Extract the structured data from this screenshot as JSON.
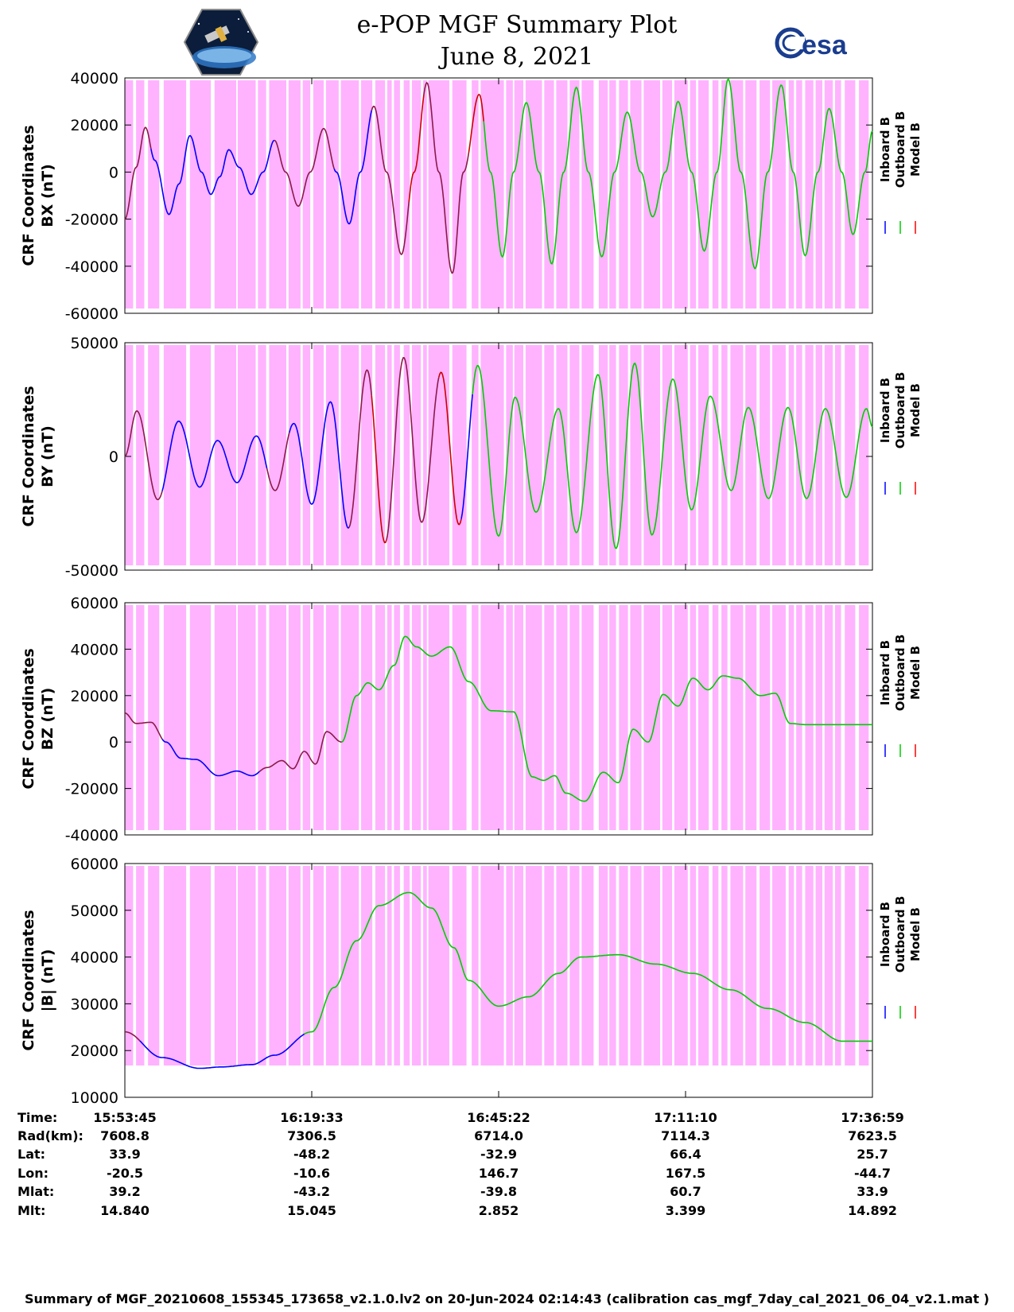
{
  "header": {
    "title": "e-POP MGF Summary Plot",
    "date": "June 8, 2021",
    "logo_left": "CASSIOPE",
    "logo_right": "esa"
  },
  "legend": [
    {
      "label": "Inboard B",
      "color": "#0000ff"
    },
    {
      "label": "Outboard B",
      "color": "#00cc00"
    },
    {
      "label": "Model B",
      "color": "#ff0000"
    }
  ],
  "colors": {
    "shade": "#ffb3ff",
    "inboard": "#0000ff",
    "outboard": "#00cc00",
    "model": "#cc0000",
    "model_blend": "#8b1a4a"
  },
  "chart_data": [
    {
      "type": "line",
      "id": "bx",
      "ylabel": [
        "CRF Coordinates",
        "BX (nT)"
      ],
      "ylim": [
        -60000,
        40000
      ],
      "yticks": [
        40000,
        20000,
        0,
        -20000,
        -40000,
        -60000
      ],
      "ytick_labels": [
        "40000",
        "20000",
        "0",
        "-20000",
        "-40000",
        "-60000"
      ],
      "curve": {
        "x": [
          0,
          1.5,
          2.75,
          4,
          5.9,
          7.25,
          8.7,
          10.25,
          11.5,
          12.7,
          13.9,
          15.3,
          16.9,
          18.5,
          20,
          21.5,
          23.2,
          24.8,
          26.6,
          28.3,
          30,
          31.5,
          33.3,
          35,
          37,
          38.7,
          40.4,
          42,
          43.8,
          45.3,
          47.4,
          48.9,
          50.5,
          52,
          53.7,
          55.4,
          57.1,
          58.7,
          60.4,
          62,
          63.8,
          65.5,
          67.2,
          69,
          70.6,
          72.3,
          74,
          75.8,
          77.5,
          79.2,
          80.7,
          82.4,
          84.3,
          86,
          87.8,
          89.4,
          91,
          92.7,
          94.2,
          95.9,
          97.4,
          99,
          100
        ],
        "y": [
          -20000,
          2000,
          19000,
          5000,
          -18000,
          -5000,
          15500,
          0,
          -9500,
          -2000,
          9500,
          2000,
          -9500,
          0,
          13500,
          0,
          -14500,
          0,
          18500,
          0,
          -22000,
          0,
          28000,
          0,
          -35000,
          0,
          38000,
          0,
          -43000,
          0,
          33000,
          0,
          -36000,
          0,
          29500,
          0,
          -39000,
          0,
          36000,
          0,
          -36000,
          0,
          25500,
          0,
          -19000,
          0,
          30000,
          0,
          -33500,
          0,
          39500,
          0,
          -41000,
          0,
          37000,
          0,
          -35500,
          0,
          27000,
          0,
          -26500,
          0,
          17500
        ]
      },
      "segments": [
        [
          0,
          3.5,
          "model_blend"
        ],
        [
          3.5,
          20,
          "inboard"
        ],
        [
          20,
          28,
          "model_blend"
        ],
        [
          28,
          33,
          "inboard"
        ],
        [
          33,
          38,
          "model_blend"
        ],
        [
          38,
          40,
          "model"
        ],
        [
          40,
          46,
          "model_blend"
        ],
        [
          46,
          48,
          "model"
        ],
        [
          48,
          100,
          "outboard"
        ]
      ]
    },
    {
      "type": "line",
      "id": "by",
      "ylabel": [
        "CRF Coordinates",
        "BY (nT)"
      ],
      "ylim": [
        -50000,
        50000
      ],
      "yticks": [
        50000,
        0,
        -50000
      ],
      "ytick_labels": [
        "50000",
        "0",
        "-50000"
      ],
      "curve": {
        "x": [
          0,
          1.6,
          4.4,
          7.2,
          10,
          12.4,
          15,
          17.6,
          20.1,
          22.6,
          25,
          27.5,
          29.9,
          32.4,
          34.8,
          37.3,
          39.7,
          42.3,
          44.7,
          47.2,
          50,
          52.2,
          55,
          58,
          60.4,
          63.3,
          65.7,
          68.2,
          70.5,
          73.3,
          75.8,
          78.3,
          81.1,
          83.4,
          86.1,
          88.7,
          91.2,
          93.7,
          96.5,
          99.2,
          100
        ],
        "y": [
          0,
          20000,
          -19000,
          15500,
          -13500,
          7000,
          -11500,
          9000,
          -15000,
          14500,
          -21000,
          24000,
          -31500,
          38000,
          -38000,
          43500,
          -29000,
          37000,
          -30000,
          40000,
          -35000,
          26000,
          -24500,
          21000,
          -33500,
          36000,
          -40500,
          41000,
          -34500,
          34000,
          -23500,
          26500,
          -15000,
          21500,
          -18500,
          21500,
          -18500,
          21000,
          -18000,
          21000,
          13000
        ]
      },
      "segments": [
        [
          0,
          5,
          "model_blend"
        ],
        [
          5,
          19,
          "inboard"
        ],
        [
          19,
          22,
          "model_blend"
        ],
        [
          22,
          30,
          "inboard"
        ],
        [
          30,
          33,
          "model_blend"
        ],
        [
          33,
          35,
          "model"
        ],
        [
          35,
          42,
          "model_blend"
        ],
        [
          42,
          45,
          "model"
        ],
        [
          45,
          46.5,
          "inboard"
        ],
        [
          46.5,
          100,
          "outboard"
        ]
      ]
    },
    {
      "type": "line",
      "id": "bz",
      "ylabel": [
        "CRF Coordinates",
        "BZ (nT)"
      ],
      "ylim": [
        -40000,
        60000
      ],
      "yticks": [
        60000,
        40000,
        20000,
        0,
        -20000,
        -40000
      ],
      "ytick_labels": [
        "60000",
        "40000",
        "20000",
        "0",
        "-20000",
        "-40000"
      ],
      "curve": {
        "x": [
          0,
          1.5,
          3.5,
          5.5,
          7.5,
          9.5,
          12.5,
          15,
          17,
          19,
          21,
          22.5,
          24,
          25.5,
          27,
          29,
          31,
          32.5,
          34,
          36,
          37.5,
          39,
          41,
          43.5,
          46,
          49,
          52,
          54.5,
          56,
          57.5,
          59,
          61.5,
          64,
          66,
          68,
          70,
          72,
          74,
          76,
          78,
          80,
          82,
          85,
          87,
          89,
          91,
          93,
          95,
          97,
          98.5,
          100
        ],
        "y": [
          12500,
          8000,
          8500,
          0,
          -7000,
          -7500,
          -14500,
          -12500,
          -14500,
          -11000,
          -8000,
          -11500,
          -4000,
          -9500,
          4500,
          0,
          20000,
          25500,
          22500,
          33000,
          45500,
          41000,
          37000,
          41000,
          26000,
          13500,
          13000,
          -15000,
          -16500,
          -14500,
          -22000,
          -25500,
          -13000,
          -17500,
          5500,
          0,
          20500,
          15500,
          27500,
          22500,
          28500,
          27500,
          20000,
          21000,
          8000,
          7500,
          7500,
          7500,
          7500,
          7500,
          7500
        ]
      },
      "segments": [
        [
          0,
          5,
          "model_blend"
        ],
        [
          5,
          18,
          "inboard"
        ],
        [
          18,
          29,
          "model_blend"
        ],
        [
          29,
          100,
          "outboard"
        ]
      ]
    },
    {
      "type": "line",
      "id": "bmag",
      "ylabel": [
        "CRF Coordinates",
        "|B| (nT)"
      ],
      "ylim": [
        10000,
        60000
      ],
      "yticks": [
        60000,
        50000,
        40000,
        30000,
        20000,
        10000
      ],
      "ytick_labels": [
        "60000",
        "50000",
        "40000",
        "30000",
        "20000",
        "10000"
      ],
      "curve": {
        "x": [
          0,
          5,
          10,
          13,
          17,
          20,
          25,
          28,
          31,
          34,
          38,
          41,
          44,
          46,
          50,
          54,
          58,
          61,
          66,
          71,
          76,
          81,
          86,
          91,
          96,
          100
        ],
        "y": [
          24000,
          18500,
          16200,
          16500,
          17000,
          19000,
          24000,
          33500,
          43500,
          51000,
          53800,
          50500,
          42000,
          35000,
          29500,
          31500,
          36500,
          40000,
          40500,
          38500,
          36500,
          33000,
          29000,
          26000,
          22000,
          22000
        ]
      },
      "segments": [
        [
          0,
          2,
          "model_blend"
        ],
        [
          2,
          24,
          "inboard"
        ],
        [
          24,
          100,
          "outboard"
        ]
      ]
    }
  ],
  "shade_bands": [
    [
      0,
      1.1
    ],
    [
      1.5,
      2.6
    ],
    [
      3.1,
      4.6
    ],
    [
      5.2,
      8.2
    ],
    [
      8.7,
      11.5
    ],
    [
      12,
      14.9
    ],
    [
      15.1,
      17.5
    ],
    [
      17.8,
      18.9
    ],
    [
      19.3,
      21.6
    ],
    [
      21.9,
      23.5
    ],
    [
      23.8,
      24.8
    ],
    [
      25.2,
      26.6
    ],
    [
      26.9,
      28.6
    ],
    [
      28.9,
      31.3
    ],
    [
      31.6,
      33.1
    ],
    [
      33.5,
      34.8
    ],
    [
      35.1,
      35.7
    ],
    [
      36,
      36.8
    ],
    [
      37.3,
      38.1
    ],
    [
      38.4,
      39.6
    ],
    [
      39.9,
      40.4
    ],
    [
      40.6,
      43.4
    ],
    [
      43.8,
      45.7
    ],
    [
      46.4,
      47.3
    ],
    [
      47.6,
      50.7
    ],
    [
      51,
      51.9
    ],
    [
      52.1,
      53.3
    ],
    [
      53.6,
      55.8
    ],
    [
      56.1,
      57.4
    ],
    [
      57.7,
      59.2
    ],
    [
      59.5,
      60.8
    ],
    [
      61.1,
      62.7
    ],
    [
      63.4,
      64.6
    ],
    [
      64.8,
      65.7
    ],
    [
      66.1,
      67.3
    ],
    [
      67.6,
      69.1
    ],
    [
      69.4,
      71.6
    ],
    [
      71.9,
      73.2
    ],
    [
      73.5,
      75.3
    ],
    [
      75.6,
      76.4
    ],
    [
      76.7,
      78.1
    ],
    [
      78.6,
      79.4
    ],
    [
      79.8,
      80.6
    ],
    [
      81,
      82.7
    ],
    [
      83,
      84.5
    ],
    [
      84.9,
      86.3
    ],
    [
      86.6,
      88.4
    ],
    [
      88.8,
      89.5
    ],
    [
      89.8,
      90.6
    ],
    [
      91,
      92.1
    ],
    [
      92.4,
      93.3
    ],
    [
      93.6,
      94.7
    ],
    [
      95,
      95.8
    ],
    [
      96.3,
      97.7
    ],
    [
      98.2,
      99.5
    ]
  ],
  "x_ticks": [
    {
      "pos": 0,
      "time": "15:53:45",
      "rad": "7608.8",
      "lat": "33.9",
      "lon": "-20.5",
      "mlat": "39.2",
      "mlt": "14.840"
    },
    {
      "pos": 25,
      "time": "16:19:33",
      "rad": "7306.5",
      "lat": "-48.2",
      "lon": "-10.6",
      "mlat": "-43.2",
      "mlt": "15.045"
    },
    {
      "pos": 50,
      "time": "16:45:22",
      "rad": "6714.0",
      "lat": "-32.9",
      "lon": "146.7",
      "mlat": "-39.8",
      "mlt": "2.852"
    },
    {
      "pos": 75,
      "time": "17:11:10",
      "rad": "7114.3",
      "lat": "66.4",
      "lon": "167.5",
      "mlat": "60.7",
      "mlt": "3.399"
    },
    {
      "pos": 100,
      "time": "17:36:59",
      "rad": "7623.5",
      "lat": "25.7",
      "lon": "-44.7",
      "mlat": "33.9",
      "mlt": "14.892"
    }
  ],
  "table_labels": {
    "time": "Time:",
    "rad": "Rad(km):",
    "lat": "Lat:",
    "lon": "Lon:",
    "mlat": "Mlat:",
    "mlt": "Mlt:"
  },
  "footer": "Summary of MGF_20210608_155345_173658_v2.1.0.lv2 on 20-Jun-2024 02:14:43 (calibration cas_mgf_7day_cal_2021_06_04_v2.1.mat )"
}
